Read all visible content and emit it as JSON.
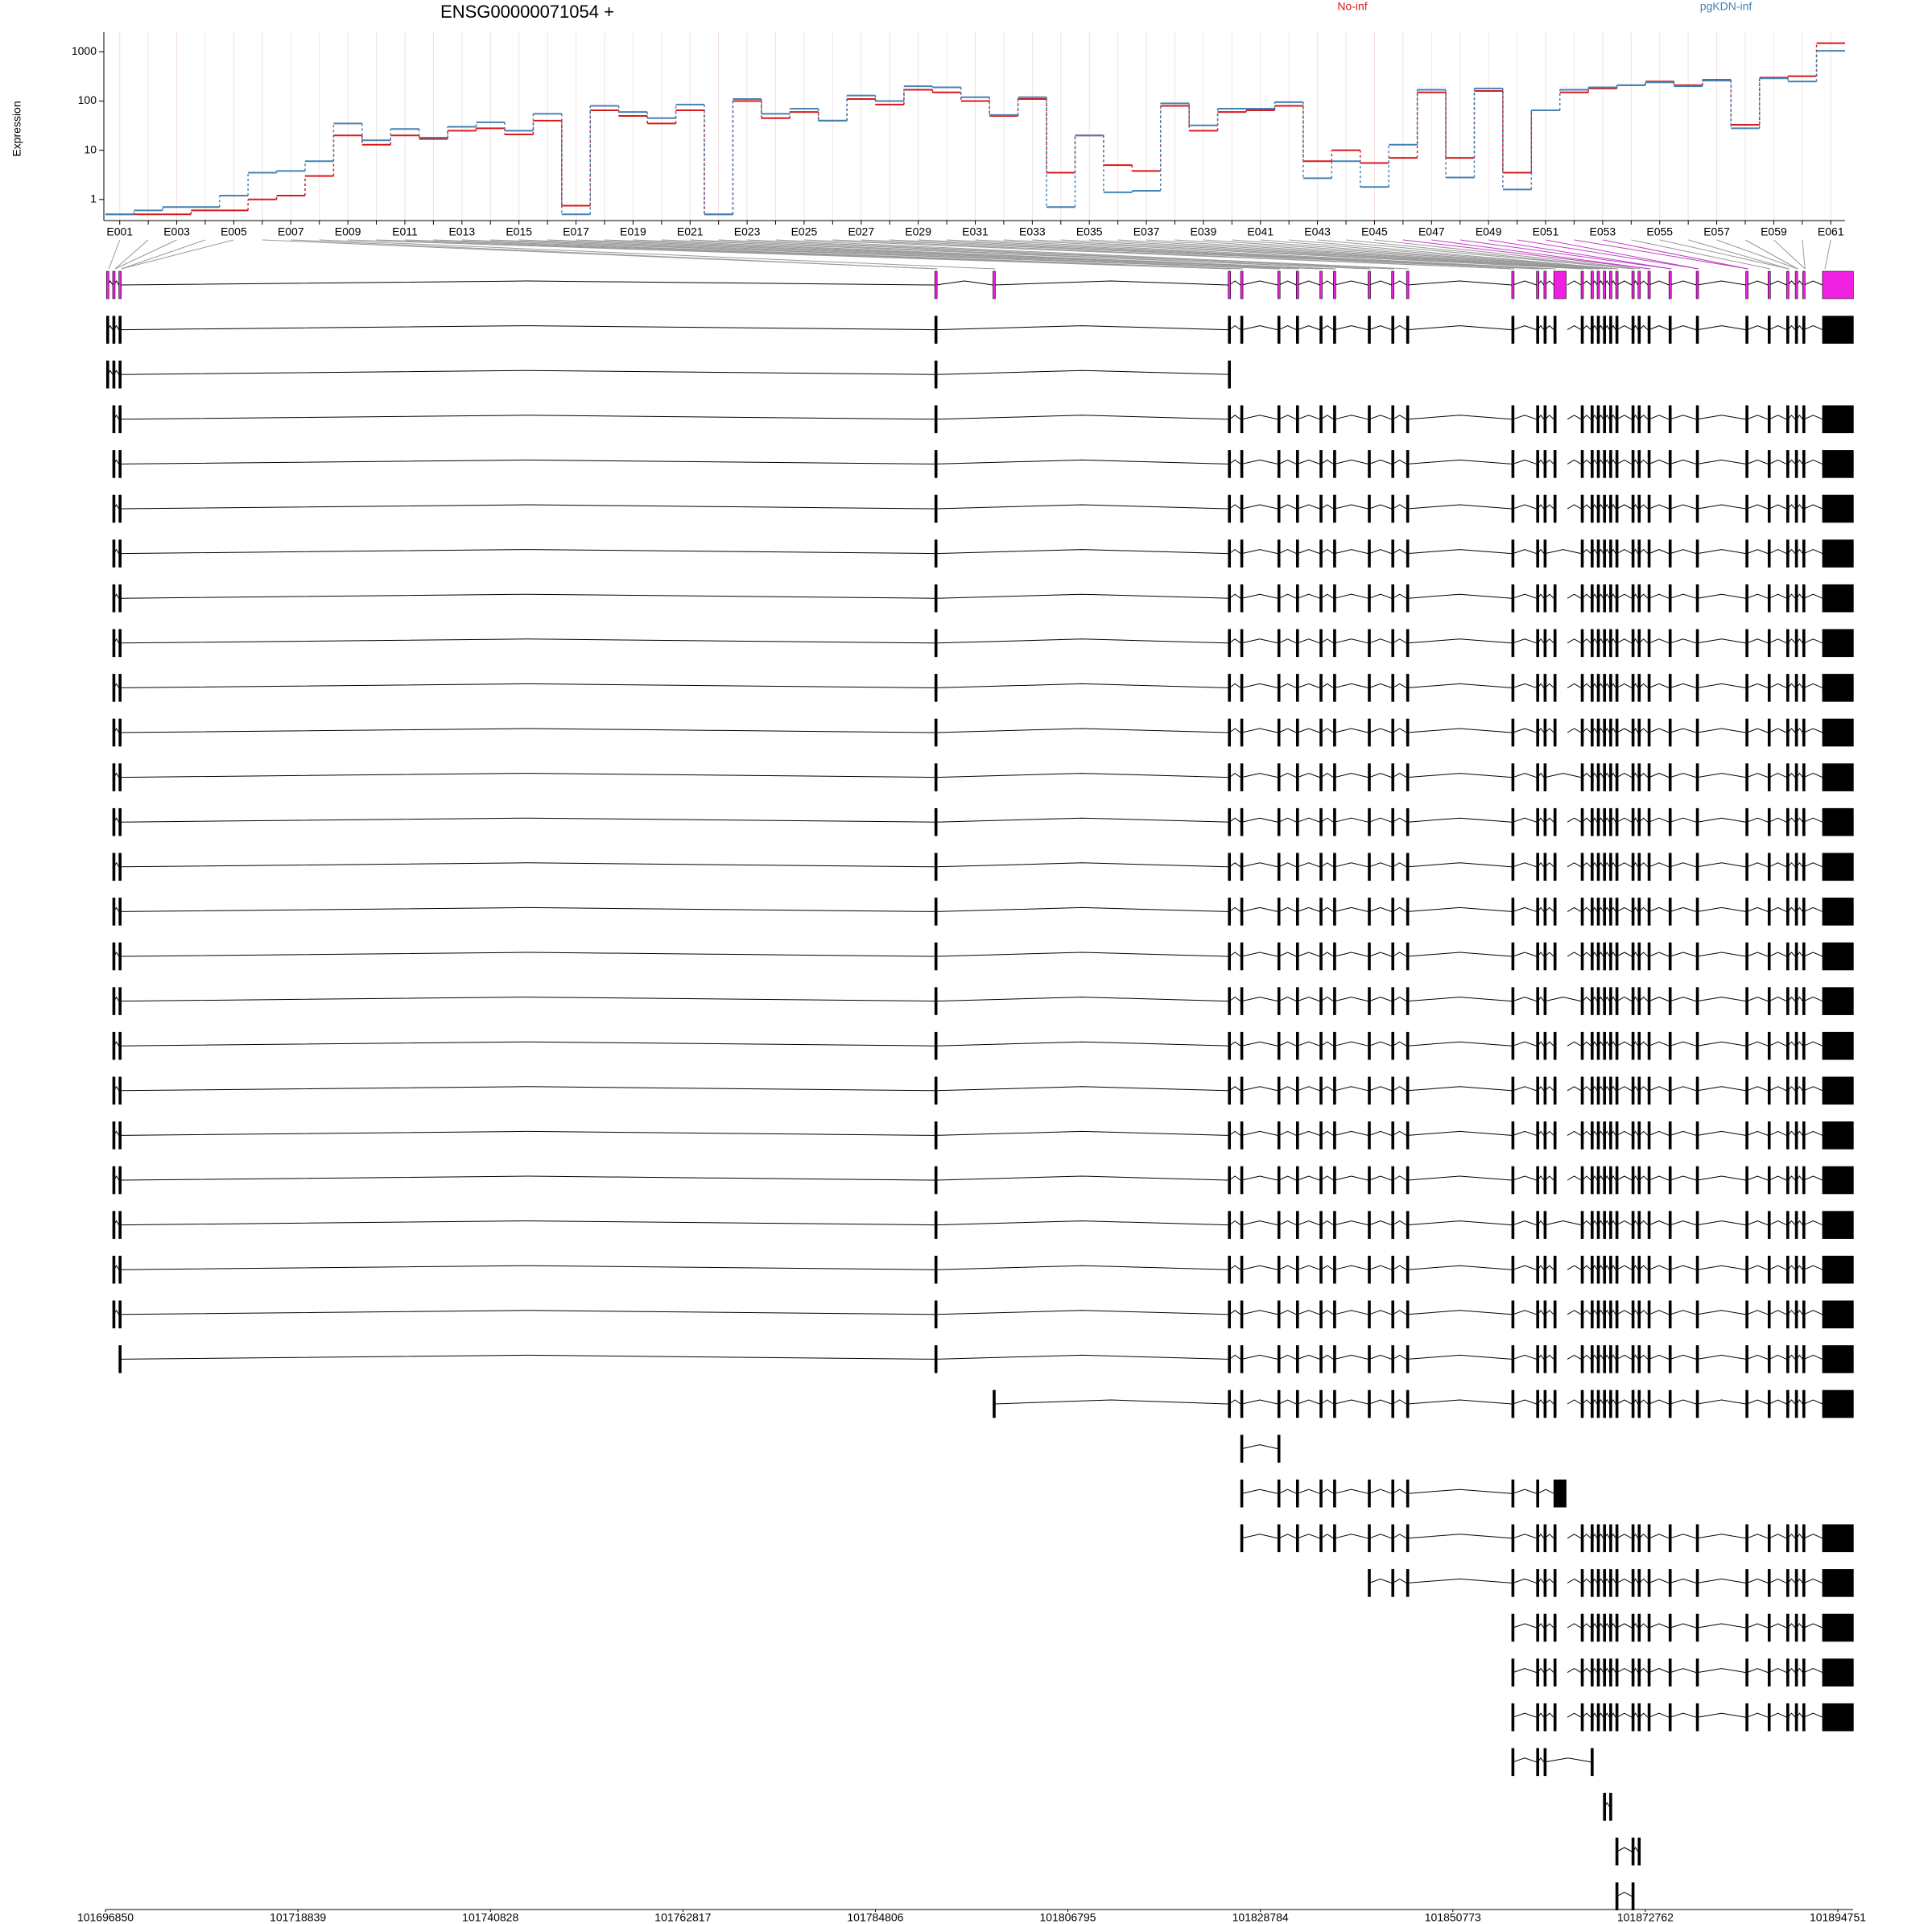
{
  "chart_data": {
    "type": "step",
    "title": "ENSG00000071054 +",
    "y_label": "Expression",
    "log_y": true,
    "grid": true,
    "categories": [
      "E001",
      null,
      "E003",
      null,
      "E005",
      null,
      "E007",
      null,
      "E009",
      null,
      "E011",
      null,
      "E013",
      null,
      "E015",
      null,
      "E017",
      null,
      "E019",
      null,
      "E021",
      null,
      "E023",
      null,
      "E025",
      null,
      "E027",
      null,
      "E029",
      null,
      "E031",
      null,
      "E033",
      null,
      "E035",
      null,
      "E037",
      null,
      "E039",
      null,
      "E041",
      null,
      "E043",
      null,
      "E045",
      null,
      "E047",
      null,
      "E049",
      null,
      "E051",
      null,
      "E053",
      null,
      "E055",
      null,
      "E057",
      null,
      "E059",
      null,
      "E061"
    ],
    "series": [
      {
        "name": "No-inf",
        "color": "#d7191c",
        "values": [
          0.5,
          0.5,
          0.5,
          0.6,
          0.6,
          1.0,
          1.2,
          3,
          20,
          13,
          20,
          17,
          25,
          28,
          21,
          40,
          0.75,
          65,
          50,
          35,
          65,
          0.5,
          100,
          45,
          60,
          40,
          110,
          85,
          170,
          150,
          100,
          50,
          110,
          3.5,
          20,
          5,
          3.8,
          80,
          25,
          60,
          65,
          80,
          6,
          10,
          5.5,
          7,
          150,
          7,
          160,
          3.5,
          65,
          150,
          180,
          210,
          250,
          210,
          270,
          33,
          300,
          320,
          1500
        ]
      },
      {
        "name": "pgKDN-inf",
        "color": "#4682b4",
        "values": [
          0.5,
          0.6,
          0.7,
          0.7,
          1.2,
          3.5,
          3.8,
          6,
          35,
          16,
          27,
          18,
          30,
          37,
          25,
          55,
          0.5,
          80,
          60,
          45,
          85,
          0.5,
          110,
          55,
          70,
          40,
          130,
          100,
          200,
          190,
          120,
          52,
          120,
          0.7,
          20,
          1.4,
          1.5,
          90,
          32,
          70,
          70,
          95,
          2.7,
          6,
          1.8,
          13,
          170,
          2.8,
          180,
          1.6,
          65,
          170,
          190,
          210,
          240,
          200,
          260,
          28,
          290,
          250,
          1050
        ]
      }
    ],
    "ylim": [
      0.45,
      2000
    ],
    "yticks": [
      1,
      10,
      100,
      1000
    ],
    "genomic_axis": {
      "xlim": [
        101696850,
        101894751
      ],
      "xticks": [
        101696850,
        101718839,
        101740828,
        101762817,
        101784806,
        101806795,
        101828784,
        101850773,
        101872762,
        101894751
      ]
    }
  }
}
